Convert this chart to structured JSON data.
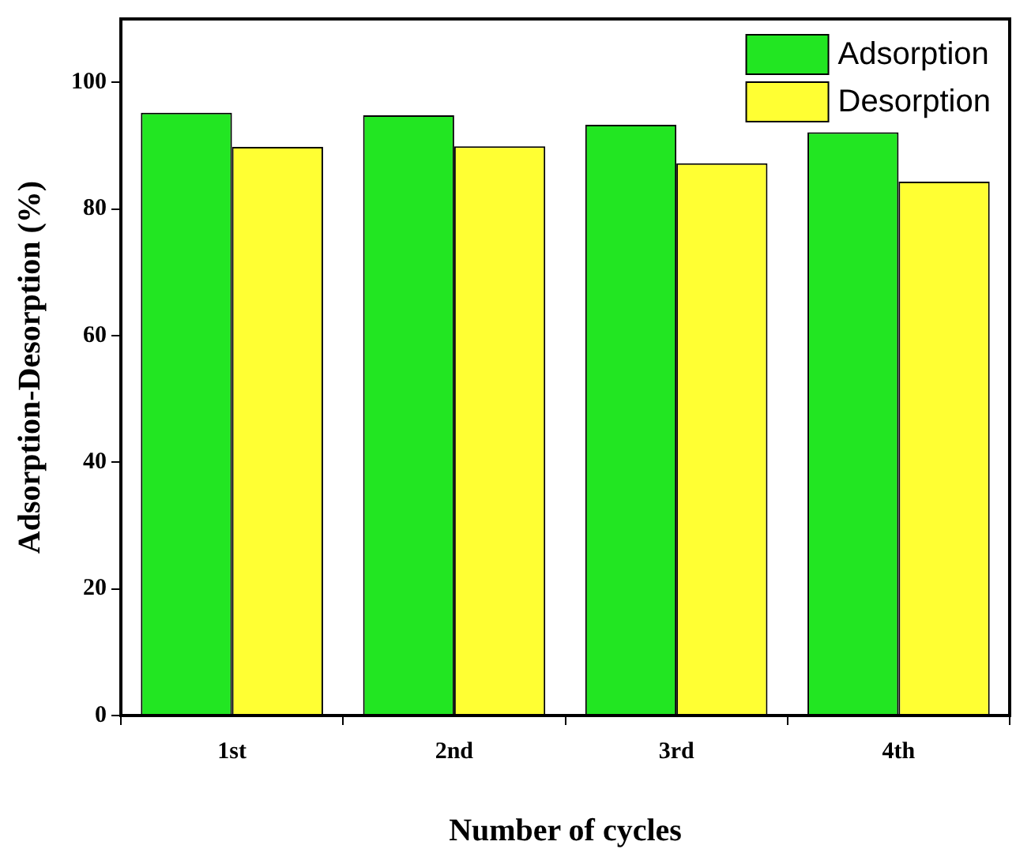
{
  "chart_data": {
    "type": "bar",
    "xlabel": "Number of cycles",
    "ylabel": "Adsorption-Desorption (%)",
    "categories": [
      "1st",
      "2nd",
      "3rd",
      "4th"
    ],
    "series": [
      {
        "name": "Adsorption",
        "color": "#22e622",
        "values": [
          95.2,
          94.8,
          93.3,
          92.1
        ]
      },
      {
        "name": "Desorption",
        "color": "#ffff33",
        "values": [
          89.8,
          89.9,
          87.2,
          84.3
        ]
      }
    ],
    "ylim": [
      0,
      110
    ],
    "yticks": [
      0,
      20,
      40,
      60,
      80,
      100
    ],
    "grid": false,
    "legend": "top right"
  }
}
